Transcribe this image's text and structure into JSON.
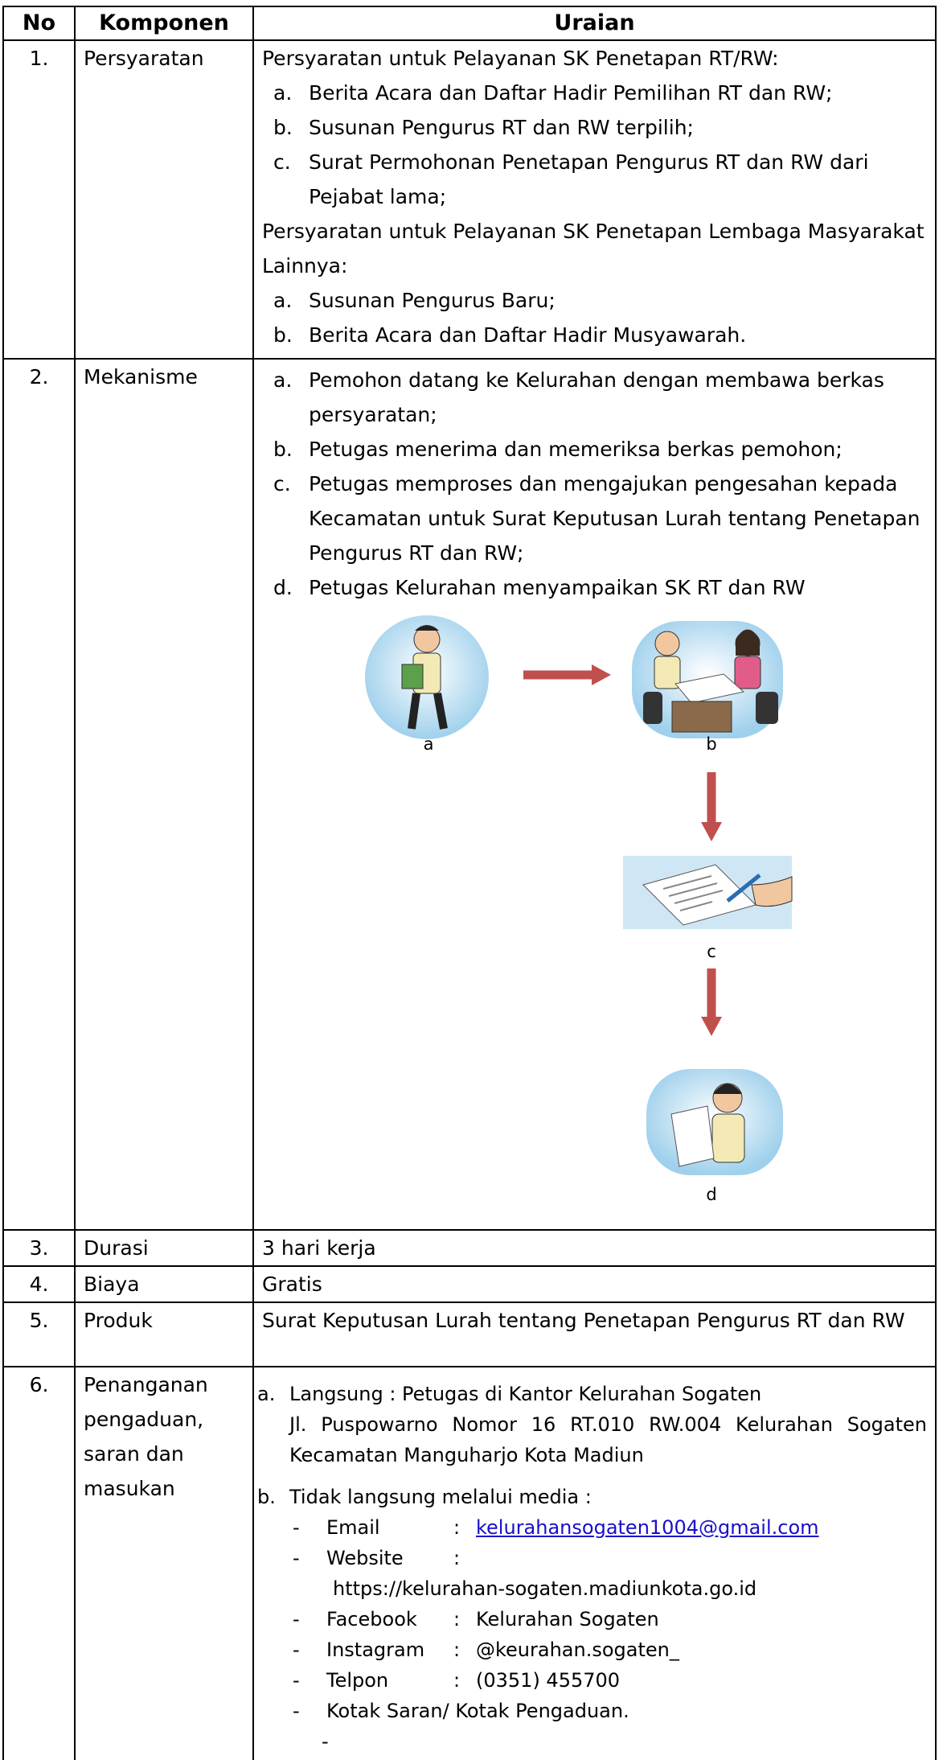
{
  "table": {
    "header": {
      "no": "No",
      "komponen": "Komponen",
      "uraian": "Uraian"
    },
    "rows": [
      {
        "no": "1.",
        "komponen": "Persyaratan",
        "uraian": [
          {
            "heading": "Persyaratan untuk Pelayanan SK Penetapan RT/RW:",
            "items": [
              {
                "marker": "a.",
                "text": "Berita Acara dan Daftar Hadir Pemilihan RT dan RW;"
              },
              {
                "marker": "b.",
                "text": "Susunan Pengurus RT dan RW terpilih;"
              },
              {
                "marker": "c.",
                "text": "Surat Permohonan Penetapan Pengurus RT dan RW dari Pejabat lama;"
              }
            ]
          },
          {
            "heading": "Persyaratan untuk Pelayanan SK Penetapan Lembaga Masyarakat Lainnya:",
            "items": [
              {
                "marker": "a.",
                "text": "Susunan Pengurus Baru;"
              },
              {
                "marker": "b.",
                "text": "Berita Acara dan Daftar Hadir Musyawarah."
              }
            ]
          }
        ]
      },
      {
        "no": "2.",
        "komponen": "Mekanisme",
        "uraian": {
          "items": [
            {
              "marker": "a.",
              "text": "Pemohon datang ke Kelurahan dengan membawa berkas persyaratan;"
            },
            {
              "marker": "b.",
              "text": "Petugas menerima dan memeriksa berkas pemohon;"
            },
            {
              "marker": "c.",
              "text": "Petugas memproses dan mengajukan pengesahan kepada Kecamatan untuk Surat Keputusan Lurah tentang Penetapan Pengurus RT dan RW;"
            },
            {
              "marker": "d.",
              "text": "Petugas Kelurahan menyampaikan SK RT dan RW"
            }
          ],
          "diagram": [
            "a",
            "b",
            "c",
            "d"
          ]
        }
      },
      {
        "no": "3.",
        "komponen": "Durasi",
        "uraian": "3 hari kerja"
      },
      {
        "no": "4.",
        "komponen": "Biaya",
        "uraian": "Gratis"
      },
      {
        "no": "5.",
        "komponen": "Produk",
        "uraian": "Surat Keputusan Lurah tentang Penetapan Pengurus RT dan RW"
      },
      {
        "no": "6.",
        "komponen": "Penanganan pengaduan, saran dan masukan",
        "uraian": {
          "direct": {
            "marker": "a.",
            "text": "Langsung : Petugas di Kantor Kelurahan Sogaten",
            "address": "Jl. Puspowarno Nomor 16 RT.010 RW.004 Kelurahan Sogaten Kecamatan Manguharjo Kota Madiun"
          },
          "indirect": {
            "marker": "b.",
            "text": "Tidak langsung melalui media :",
            "contacts": [
              {
                "marker": "-",
                "label": "Email",
                "separator": ":",
                "value": "kelurahansogaten1004@gmail.com"
              },
              {
                "marker": "-",
                "label": "Website",
                "separator": ":",
                "value": "https://kelurahan-sogaten.madiunkota.go.id"
              },
              {
                "marker": "-",
                "label": "Facebook",
                "separator": ":",
                "value": "Kelurahan Sogaten"
              },
              {
                "marker": "-",
                "label": "Instagram",
                "separator": ":",
                "value": "@keurahan.sogaten_"
              },
              {
                "marker": "-",
                "label": "Telpon",
                "separator": ":",
                "value": "(0351) 455700"
              },
              {
                "marker": "-",
                "label": "Kotak Saran/ Kotak Pengaduan."
              },
              {
                "marker": "-"
              }
            ]
          }
        }
      }
    ]
  }
}
